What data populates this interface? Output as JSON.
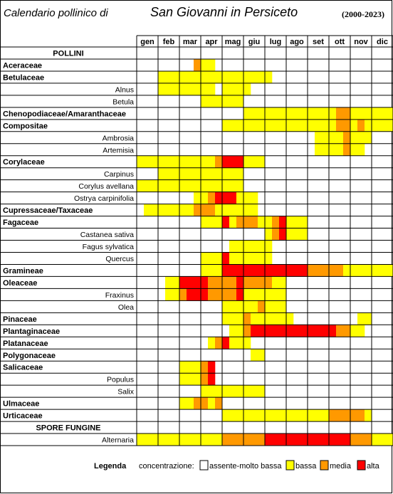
{
  "header": {
    "title_left": "Calendario pollinico di",
    "title_city": "San Giovanni in Persiceto",
    "period": "(2000-2023)"
  },
  "legend": {
    "title": "Legenda",
    "concentration_label": "concentrazione:",
    "levels": [
      {
        "key": "0",
        "label": "assente-molto bassa",
        "color": "#ffffff"
      },
      {
        "key": "1",
        "label": "bassa",
        "color": "#ffff00"
      },
      {
        "key": "2",
        "label": "media",
        "color": "#ff9900"
      },
      {
        "key": "3",
        "label": "alta",
        "color": "#ff0000"
      }
    ]
  },
  "chart_data": {
    "type": "heatmap",
    "title": "Calendario pollinico di San Giovanni in Persiceto",
    "period": "(2000-2023)",
    "months": [
      "gen",
      "feb",
      "mar",
      "apr",
      "mag",
      "giu",
      "lug",
      "ago",
      "set",
      "ott",
      "nov",
      "dic"
    ],
    "cells_per_month": 3,
    "encoding": "one digit per third of month: 0 assente-molto bassa, 1 bassa, 2 media, 3 alta",
    "rows": [
      {
        "label": "POLLINI",
        "kind": "section"
      },
      {
        "label": "Aceraceae",
        "kind": "family",
        "levels": "000000002110000000000000000000000000"
      },
      {
        "label": "Betulaceae",
        "kind": "family",
        "levels": "000111111111111111100000000000000000"
      },
      {
        "label": "Alnus",
        "kind": "genus",
        "levels": "000111111110111100000000000000000000"
      },
      {
        "label": "Betula",
        "kind": "genus",
        "levels": "000000000111111000000000000000000000"
      },
      {
        "label": "Chenopodiaceae/Amaranthaceae",
        "kind": "family",
        "levels": "000000000000000111111111111122111111"
      },
      {
        "label": "Compositae",
        "kind": "family",
        "levels": "000000000000111111111111111122121111"
      },
      {
        "label": "Ambrosia",
        "kind": "genus",
        "levels": "000000000000000000000000011112111000"
      },
      {
        "label": "Artemisia",
        "kind": "genus",
        "levels": "000000000000000000000000011112110000"
      },
      {
        "label": "Corylaceae",
        "kind": "family",
        "levels": "111111111112333111000000000000000000"
      },
      {
        "label": "Carpinus",
        "kind": "genus",
        "levels": "000111111111111000000000000000000000"
      },
      {
        "label": "Corylus avellana",
        "kind": "genus",
        "levels": "111111111111111000000000000000000000"
      },
      {
        "label": "Ostrya carpinifolia",
        "kind": "genus",
        "levels": "000000001123331110000000000000000000"
      },
      {
        "label": "Cupressaceae/Taxaceae",
        "kind": "family",
        "levels": "011111112221111110000000000000000000"
      },
      {
        "label": "Fagaceae",
        "kind": "family",
        "levels": "000000000111312221123111000000000000"
      },
      {
        "label": "Castanea sativa",
        "kind": "genus",
        "levels": "000000000000000000123111000000000000"
      },
      {
        "label": "Fagus sylvatica",
        "kind": "genus",
        "levels": "000000000000011111100000000000000000"
      },
      {
        "label": "Quercus",
        "kind": "genus",
        "levels": "000000000111311111100000000000000000"
      },
      {
        "label": "Gramineae",
        "kind": "family",
        "levels": "000000000111333333333333222221111111"
      },
      {
        "label": "Oleaceae",
        "kind": "family",
        "levels": "000011333322223222211000000000000000"
      },
      {
        "label": "Fraxinus",
        "kind": "genus",
        "levels": "000011233322223111111000000000000000"
      },
      {
        "label": "Olea",
        "kind": "genus",
        "levels": "000000000000111112111000000000000000"
      },
      {
        "label": "Pinaceae",
        "kind": "family",
        "levels": "000000000000111211111100000000011000"
      },
      {
        "label": "Plantaginaceae",
        "kind": "family",
        "levels": "000000000000011233333333333322110000"
      },
      {
        "label": "Platanaceae",
        "kind": "family",
        "levels": "000000000012311100000000000000000000"
      },
      {
        "label": "Polygonaceae",
        "kind": "family",
        "levels": "000000000000000011000000000000000000"
      },
      {
        "label": "Salicaceae",
        "kind": "family",
        "levels": "000000111230000000000000000000000000"
      },
      {
        "label": "Populus",
        "kind": "genus",
        "levels": "000000111230000000000000000000000000"
      },
      {
        "label": "Salix",
        "kind": "genus",
        "levels": "000000000111111111000000000000000000"
      },
      {
        "label": "Ulmaceae",
        "kind": "family",
        "levels": "000000112212000000000000000000000000"
      },
      {
        "label": "Urticaceae",
        "kind": "family",
        "levels": "000000000000111111111111111222221000"
      },
      {
        "label": "SPORE FUNGINE",
        "kind": "section"
      },
      {
        "label": "Alternaria",
        "kind": "genus",
        "levels": "111111111111222222333333333333222111"
      }
    ]
  }
}
